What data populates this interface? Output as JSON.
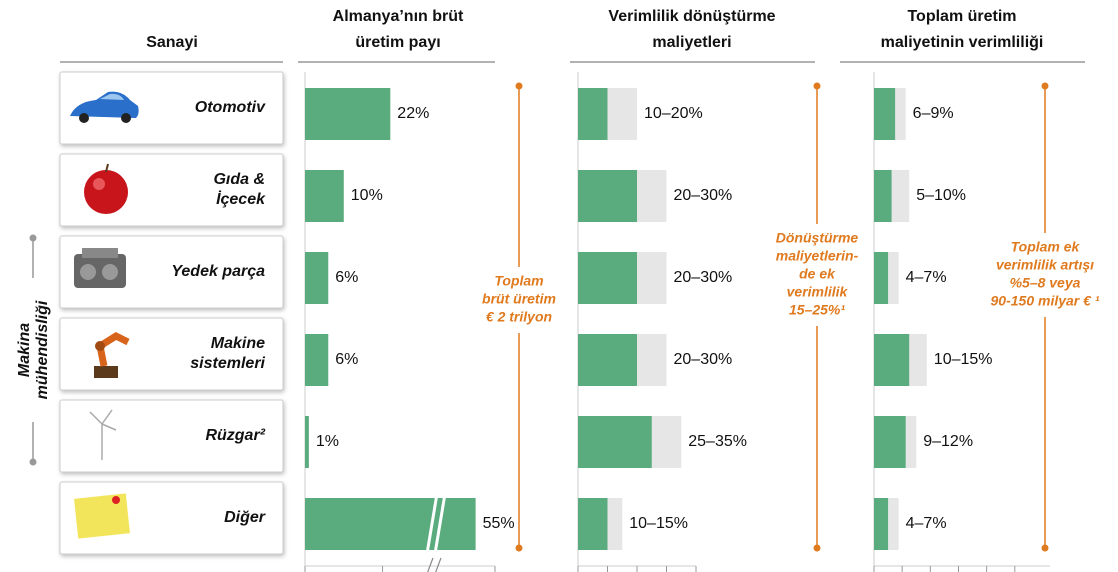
{
  "header": "Sanayi",
  "group_label": [
    "Makina",
    "mühendisliği"
  ],
  "categories": [
    [
      "Otomotiv"
    ],
    [
      "Gıda &",
      "İçecek"
    ],
    [
      "Yedek parça"
    ],
    [
      "Makine",
      "sistemleri"
    ],
    [
      "Rüzgar²"
    ],
    [
      "Diğer"
    ]
  ],
  "chart_data": [
    {
      "type": "bar",
      "title": [
        "Almanya’nın brüt",
        "üretim payı"
      ],
      "values": [
        22,
        10,
        6,
        6,
        1,
        55
      ],
      "value_labels": [
        "22%",
        "10%",
        "6%",
        "6%",
        "1%",
        "55%"
      ],
      "color": "#5aab7e",
      "xlim": [
        0,
        60
      ],
      "xticks": [
        0,
        20,
        60
      ],
      "xbreak": [
        33,
        44
      ],
      "annotation": [
        "Toplam",
        "brüt üretim",
        "€ 2 trilyon"
      ],
      "annotation_color": "#e07a1f"
    },
    {
      "type": "range",
      "title": [
        "Verimlilik dönüştürme",
        "maliyetleri"
      ],
      "low": [
        10,
        20,
        20,
        20,
        25,
        10
      ],
      "high": [
        20,
        30,
        30,
        30,
        35,
        15
      ],
      "value_labels": [
        "10–20%",
        "20–30%",
        "20–30%",
        "20–30%",
        "25–35%",
        "10–15%"
      ],
      "color": "#5aab7e",
      "range_color": "#e6e6e6",
      "xlim": [
        0,
        40
      ],
      "xticks": [
        0,
        10,
        20,
        30,
        40
      ],
      "annotation": [
        "Dönüştürme",
        "maliyetlerin-",
        "de ek",
        "verimlilik",
        "15–25%¹"
      ],
      "annotation_color": "#e07a1f"
    },
    {
      "type": "range",
      "title": [
        "Toplam üretim",
        "maliyetinin verimliliği"
      ],
      "low": [
        6,
        5,
        4,
        10,
        9,
        4
      ],
      "high": [
        9,
        10,
        7,
        15,
        12,
        7
      ],
      "value_labels": [
        "6–9%",
        "5–10%",
        "4–7%",
        "10–15%",
        "9–12%",
        "4–7%"
      ],
      "color": "#5aab7e",
      "range_color": "#e6e6e6",
      "xlim": [
        0,
        50
      ],
      "xticks": [
        0,
        8,
        16,
        24,
        32,
        40
      ],
      "annotation": [
        "Toplam ek",
        "verimlilik artışı",
        "%5–8 veya",
        "90-150 milyar € ¹"
      ],
      "annotation_color": "#e07a1f"
    }
  ]
}
